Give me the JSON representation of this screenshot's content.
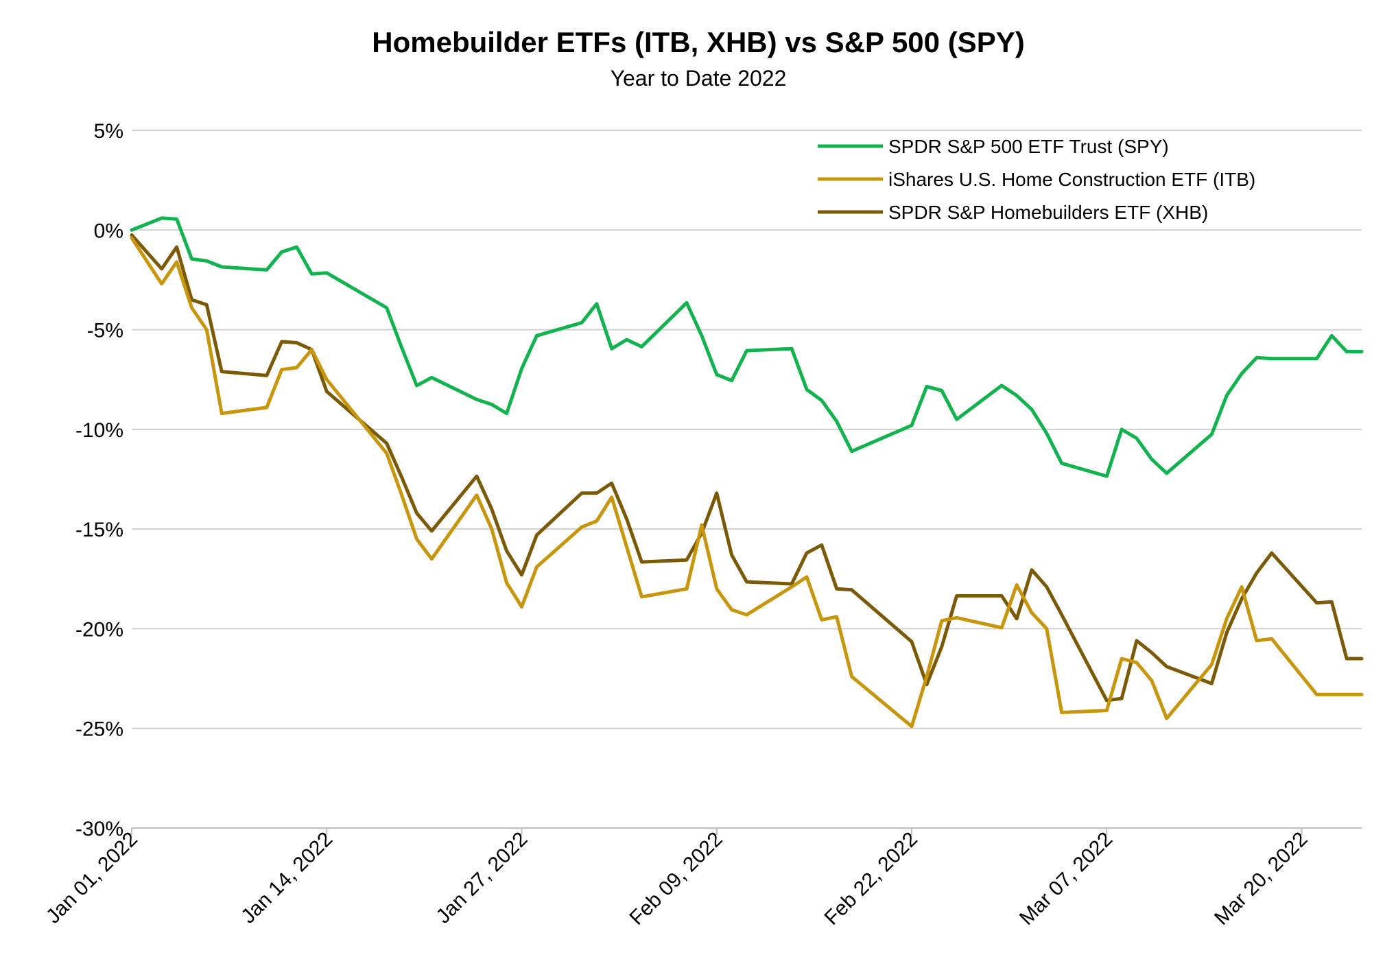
{
  "chart_data": {
    "type": "line",
    "title": "Homebuilder ETFs (ITB, XHB) vs S&P 500 (SPY)",
    "subtitle": "Year to Date 2022",
    "xlabel": "",
    "ylabel": "",
    "ylim": [
      -30,
      5
    ],
    "y_ticks": [
      {
        "value": 5,
        "label": "5%"
      },
      {
        "value": 0,
        "label": "0%"
      },
      {
        "value": -5,
        "label": "-5%"
      },
      {
        "value": -10,
        "label": "-10%"
      },
      {
        "value": -15,
        "label": "-15%"
      },
      {
        "value": -20,
        "label": "-20%"
      },
      {
        "value": -25,
        "label": "-25%"
      },
      {
        "value": -30,
        "label": "-30%"
      }
    ],
    "x_ticks": [
      {
        "date": "2022-01-01",
        "label": "Jan 01, 2022"
      },
      {
        "date": "2022-01-14",
        "label": "Jan 14, 2022"
      },
      {
        "date": "2022-01-27",
        "label": "Jan 27, 2022"
      },
      {
        "date": "2022-02-09",
        "label": "Feb 09, 2022"
      },
      {
        "date": "2022-02-22",
        "label": "Feb 22, 2022"
      },
      {
        "date": "2022-03-07",
        "label": "Mar 07, 2022"
      },
      {
        "date": "2022-03-20",
        "label": "Mar 20, 2022"
      }
    ],
    "xlim": [
      "2022-01-01",
      "2022-03-24"
    ],
    "grid": true,
    "legend_position": "top-right",
    "x": [
      "2022-01-01",
      "2022-01-03",
      "2022-01-04",
      "2022-01-05",
      "2022-01-06",
      "2022-01-07",
      "2022-01-10",
      "2022-01-11",
      "2022-01-12",
      "2022-01-13",
      "2022-01-14",
      "2022-01-18",
      "2022-01-19",
      "2022-01-20",
      "2022-01-21",
      "2022-01-24",
      "2022-01-25",
      "2022-01-26",
      "2022-01-27",
      "2022-01-28",
      "2022-01-31",
      "2022-02-01",
      "2022-02-02",
      "2022-02-03",
      "2022-02-04",
      "2022-02-07",
      "2022-02-08",
      "2022-02-09",
      "2022-02-10",
      "2022-02-11",
      "2022-02-14",
      "2022-02-15",
      "2022-02-16",
      "2022-02-17",
      "2022-02-18",
      "2022-02-22",
      "2022-02-23",
      "2022-02-24",
      "2022-02-25",
      "2022-02-28",
      "2022-03-01",
      "2022-03-02",
      "2022-03-03",
      "2022-03-04",
      "2022-03-07",
      "2022-03-08",
      "2022-03-09",
      "2022-03-10",
      "2022-03-11",
      "2022-03-14",
      "2022-03-15",
      "2022-03-16",
      "2022-03-17",
      "2022-03-18",
      "2022-03-21",
      "2022-03-22",
      "2022-03-23",
      "2022-03-24"
    ],
    "series": [
      {
        "name": "SPDR S&P 500 ETF Trust (SPY)",
        "color": "#12b24f",
        "values": [
          0.0,
          0.6,
          0.55,
          -1.45,
          -1.55,
          -1.85,
          -2.0,
          -1.1,
          -0.85,
          -2.2,
          -2.15,
          -3.9,
          -5.9,
          -7.8,
          -7.4,
          -8.5,
          -8.75,
          -9.2,
          -6.95,
          -5.3,
          -4.65,
          -3.7,
          -5.95,
          -5.5,
          -5.85,
          -3.65,
          -5.3,
          -7.25,
          -7.55,
          -6.05,
          -5.95,
          -8.0,
          -8.55,
          -9.6,
          -11.1,
          -9.8,
          -7.85,
          -8.05,
          -9.5,
          -7.8,
          -8.3,
          -9.0,
          -10.2,
          -11.7,
          -12.35,
          -10.0,
          -10.45,
          -11.5,
          -12.2,
          -10.25,
          -8.3,
          -7.2,
          -6.4,
          -6.45,
          -6.45,
          -5.3,
          -6.1,
          -6.1
        ]
      },
      {
        "name": "iShares U.S. Home Construction ETF (ITB)",
        "color": "#c8960c",
        "values": [
          -0.4,
          -2.7,
          -1.6,
          -3.9,
          -5.0,
          -9.2,
          -8.9,
          -7.0,
          -6.9,
          -6.0,
          -7.5,
          -11.2,
          -13.3,
          -15.5,
          -16.5,
          -13.3,
          -15.0,
          -17.7,
          -18.9,
          -16.9,
          -14.9,
          -14.6,
          -13.4,
          -15.9,
          -18.4,
          -18.0,
          -14.8,
          -18.0,
          -19.05,
          -19.3,
          -17.9,
          -17.4,
          -19.55,
          -19.4,
          -22.4,
          -24.9,
          -22.4,
          -19.6,
          -19.45,
          -19.95,
          -17.8,
          -19.2,
          -20.0,
          -24.2,
          -24.1,
          -21.5,
          -21.7,
          -22.6,
          -24.5,
          -21.8,
          -19.5,
          -17.9,
          -20.6,
          -20.5,
          -23.3,
          -23.3,
          -23.3,
          -23.3
        ]
      },
      {
        "name": "SPDR S&P Homebuilders ETF (XHB)",
        "color": "#7a5a06",
        "values": [
          -0.25,
          -1.95,
          -0.85,
          -3.5,
          -3.75,
          -7.1,
          -7.3,
          -5.6,
          -5.65,
          -6.0,
          -8.1,
          -10.7,
          -12.4,
          -14.2,
          -15.1,
          -12.35,
          -14.0,
          -16.1,
          -17.3,
          -15.3,
          -13.2,
          -13.2,
          -12.7,
          -14.5,
          -16.65,
          -16.55,
          -15.2,
          -13.2,
          -16.3,
          -17.65,
          -17.75,
          -16.2,
          -15.8,
          -18.0,
          -18.05,
          -20.65,
          -22.8,
          -20.9,
          -18.35,
          -18.35,
          -19.5,
          -17.05,
          -17.9,
          -19.3,
          -23.6,
          -23.5,
          -20.6,
          -21.2,
          -21.9,
          -22.75,
          -20.2,
          -18.5,
          -17.2,
          -16.2,
          -18.7,
          -18.65,
          -21.5,
          -21.5
        ]
      }
    ]
  }
}
